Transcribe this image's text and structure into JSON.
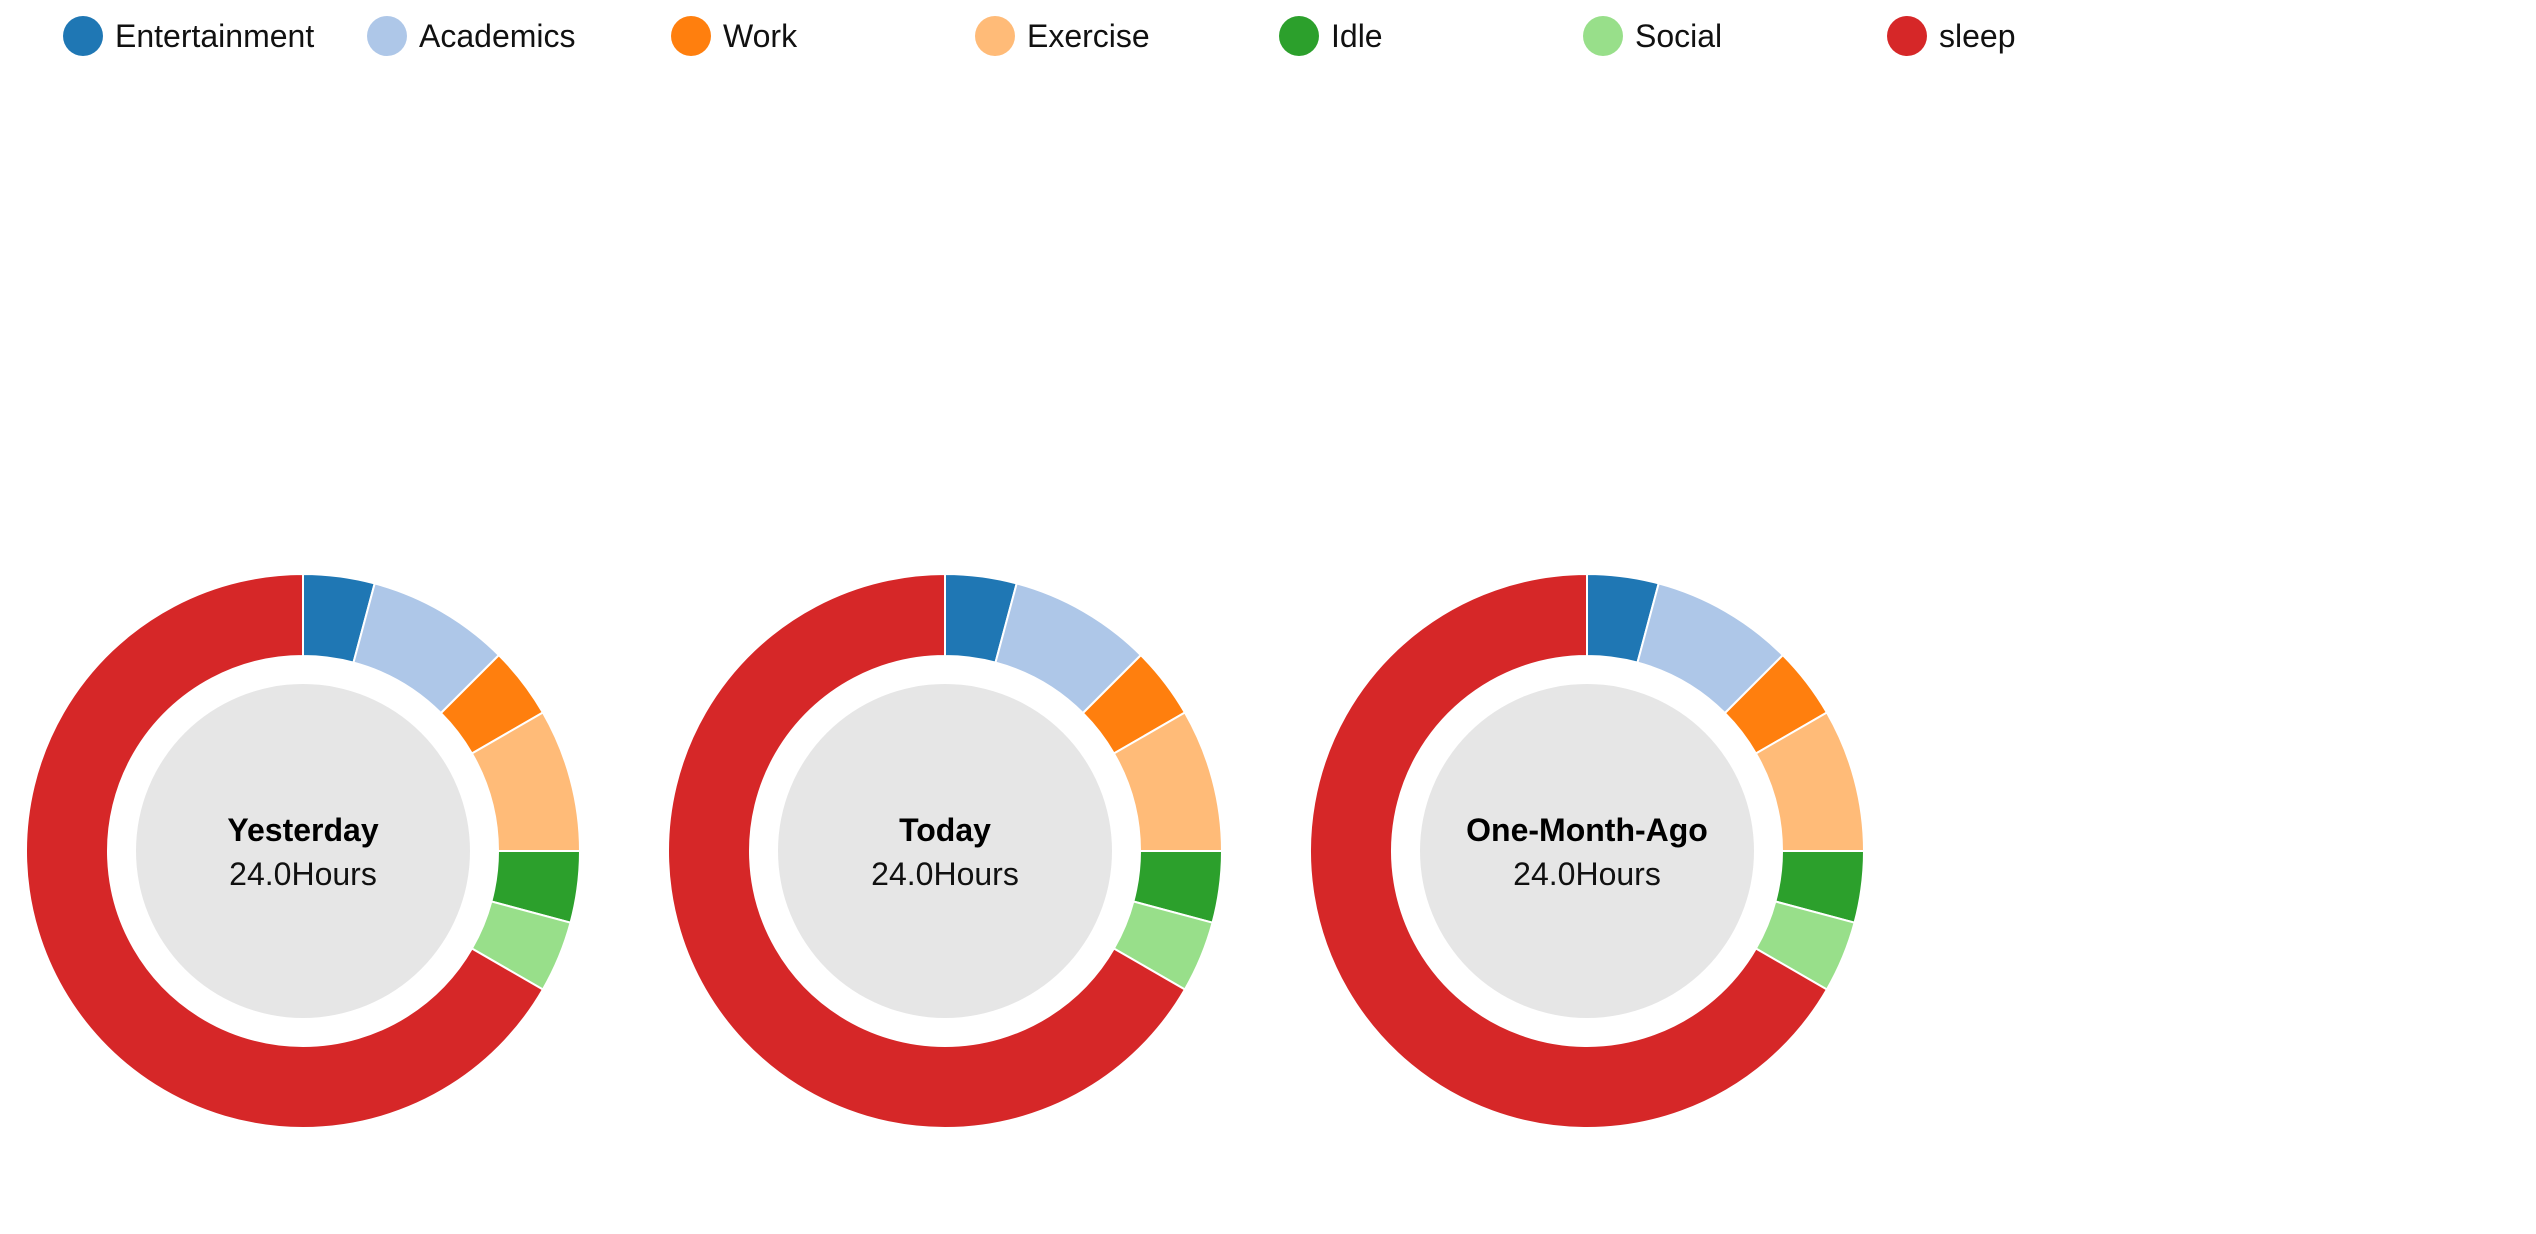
{
  "legend": {
    "items": [
      {
        "label": "Entertainment",
        "color": "#1f77b4"
      },
      {
        "label": "Academics",
        "color": "#aec7e8"
      },
      {
        "label": "Work",
        "color": "#ff7f0e"
      },
      {
        "label": "Exercise",
        "color": "#ffbb78"
      },
      {
        "label": "Idle",
        "color": "#2ca02c"
      },
      {
        "label": "Social",
        "color": "#98df8a"
      },
      {
        "label": "sleep",
        "color": "#d62728"
      }
    ]
  },
  "chart_data": [
    {
      "type": "pie",
      "title": "Yesterday",
      "subtitle": "24.0Hours",
      "categories": [
        "Entertainment",
        "Academics",
        "Work",
        "Exercise",
        "Idle",
        "Social",
        "sleep"
      ],
      "values": [
        1.0,
        2.0,
        1.0,
        2.0,
        1.0,
        1.0,
        16.0
      ],
      "colors": [
        "#1f77b4",
        "#aec7e8",
        "#ff7f0e",
        "#ffbb78",
        "#2ca02c",
        "#98df8a",
        "#d62728"
      ]
    },
    {
      "type": "pie",
      "title": "Today",
      "subtitle": "24.0Hours",
      "categories": [
        "Entertainment",
        "Academics",
        "Work",
        "Exercise",
        "Idle",
        "Social",
        "sleep"
      ],
      "values": [
        1.0,
        2.0,
        1.0,
        2.0,
        1.0,
        1.0,
        16.0
      ],
      "colors": [
        "#1f77b4",
        "#aec7e8",
        "#ff7f0e",
        "#ffbb78",
        "#2ca02c",
        "#98df8a",
        "#d62728"
      ]
    },
    {
      "type": "pie",
      "title": "One-Month-Ago",
      "subtitle": "24.0Hours",
      "categories": [
        "Entertainment",
        "Academics",
        "Work",
        "Exercise",
        "Idle",
        "Social",
        "sleep"
      ],
      "values": [
        1.0,
        2.0,
        1.0,
        2.0,
        1.0,
        1.0,
        16.0
      ],
      "colors": [
        "#1f77b4",
        "#aec7e8",
        "#ff7f0e",
        "#ffbb78",
        "#2ca02c",
        "#98df8a",
        "#d62728"
      ]
    }
  ]
}
